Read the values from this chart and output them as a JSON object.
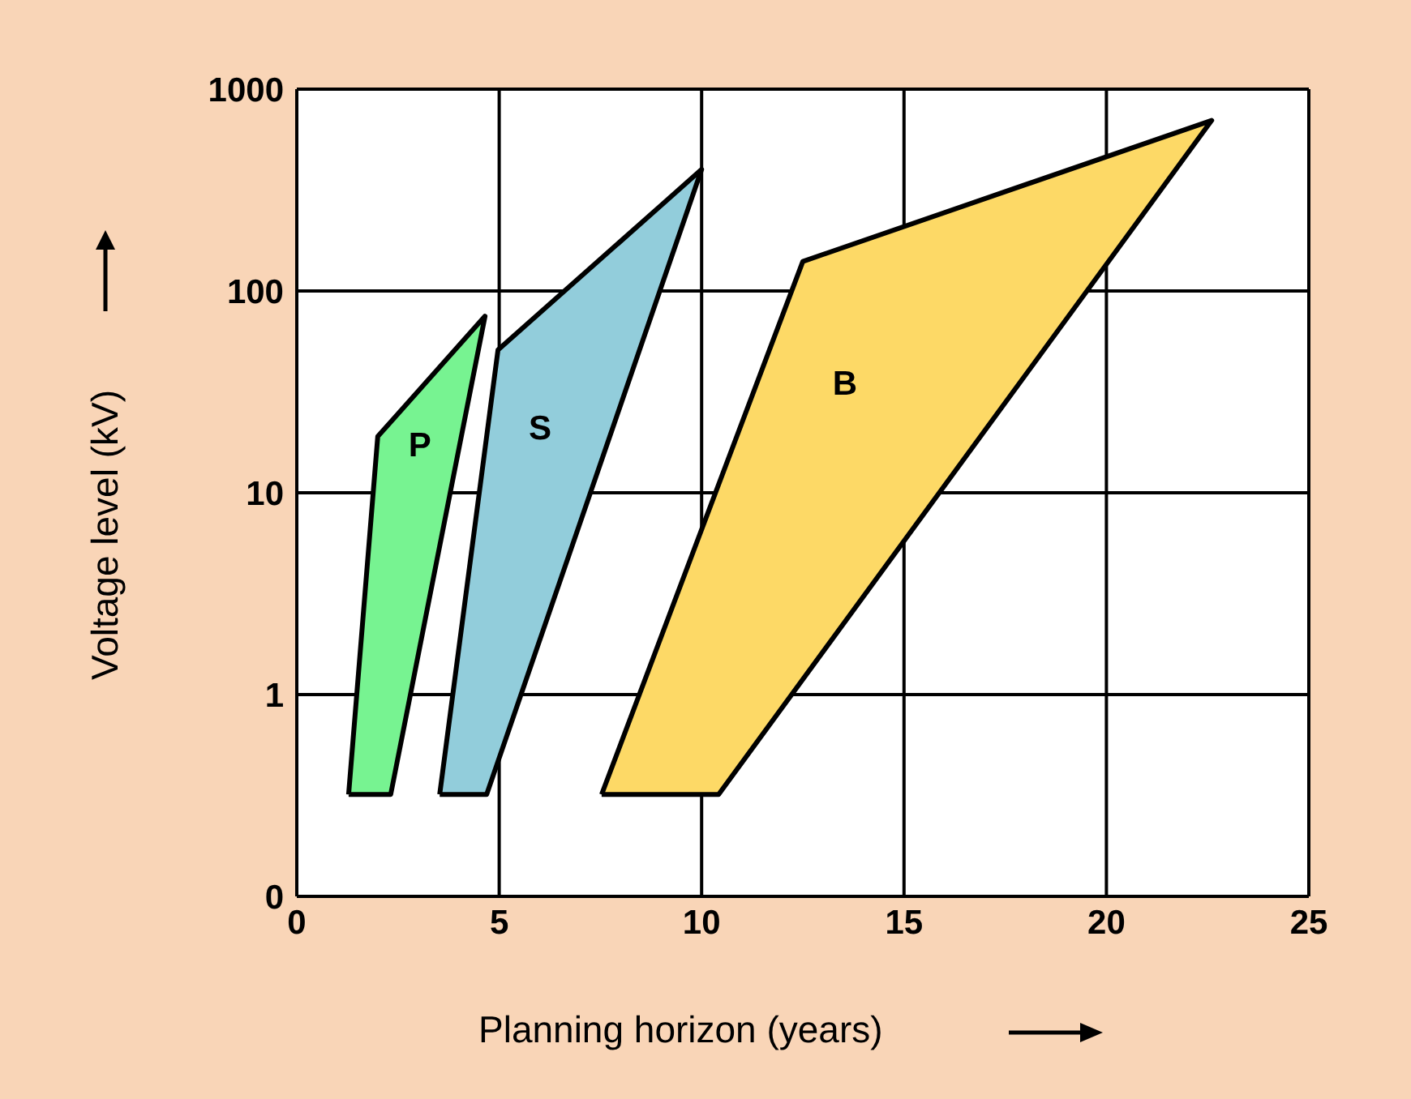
{
  "chart_data": {
    "type": "area",
    "xlabel": "Planning horizon (years)",
    "ylabel": "Voltage level  (kV)",
    "series": [
      {
        "name": "P",
        "color": "#77f391",
        "x": [
          1.28,
          2.32,
          4.65,
          2.0
        ],
        "values": [
          0.32,
          0.32,
          75,
          19
        ]
      },
      {
        "name": "S",
        "color": "#92cddb",
        "x": [
          3.53,
          4.69,
          10.0,
          4.97
        ],
        "values": [
          0.32,
          0.32,
          400,
          51
        ]
      },
      {
        "name": "B",
        "color": "#fdd966",
        "x": [
          7.53,
          10.42,
          22.6,
          12.5
        ],
        "values": [
          0.32,
          0.32,
          700,
          140
        ]
      }
    ],
    "xlim": [
      0,
      25
    ],
    "xticks": [
      0,
      5,
      10,
      15,
      20,
      25
    ],
    "ylim": [
      0.1,
      1000
    ],
    "yticks": [
      {
        "value": 0.1,
        "label": "0"
      },
      1,
      10,
      100,
      1000
    ],
    "log": "y",
    "grid": true
  }
}
